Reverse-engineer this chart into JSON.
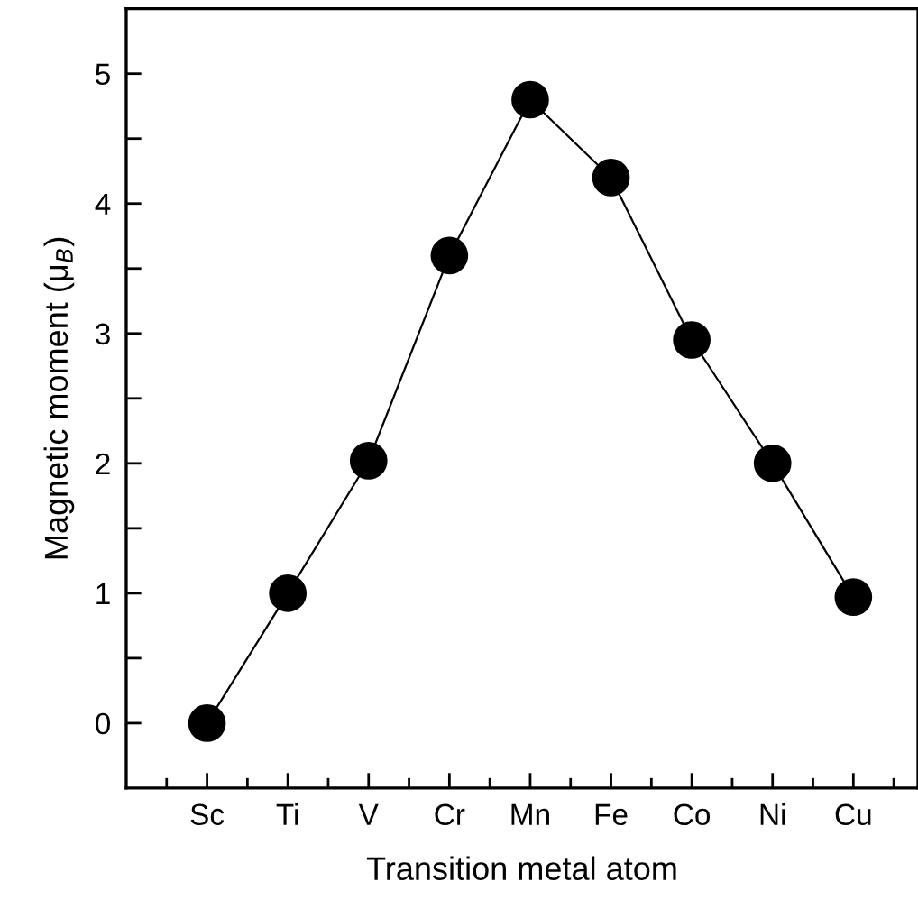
{
  "chart_data": {
    "type": "line",
    "xlabel": "Transition metal atom",
    "ylabel": "Magnetic moment (μ$_{B}$)",
    "categories": [
      "Sc",
      "Ti",
      "V",
      "Cr",
      "Mn",
      "Fe",
      "Co",
      "Ni",
      "Cu"
    ],
    "series": [
      {
        "color": "#000000",
        "values": [
          0,
          1.0,
          2.02,
          3.6,
          4.8,
          4.2,
          2.95,
          2.0,
          0.97
        ]
      }
    ],
    "ylim": [
      -0.5,
      5.5
    ],
    "yticks": [
      0,
      {
        "value": 0.5,
        "label": null
      },
      1,
      {
        "value": 1.5,
        "label": null
      },
      2,
      {
        "value": 2.5,
        "label": null
      },
      3,
      {
        "value": 3.5,
        "label": null
      },
      4,
      {
        "value": 4.5,
        "label": null
      },
      5
    ],
    "marker": "circle",
    "line_style": "solid",
    "grid": false,
    "legend": false
  }
}
